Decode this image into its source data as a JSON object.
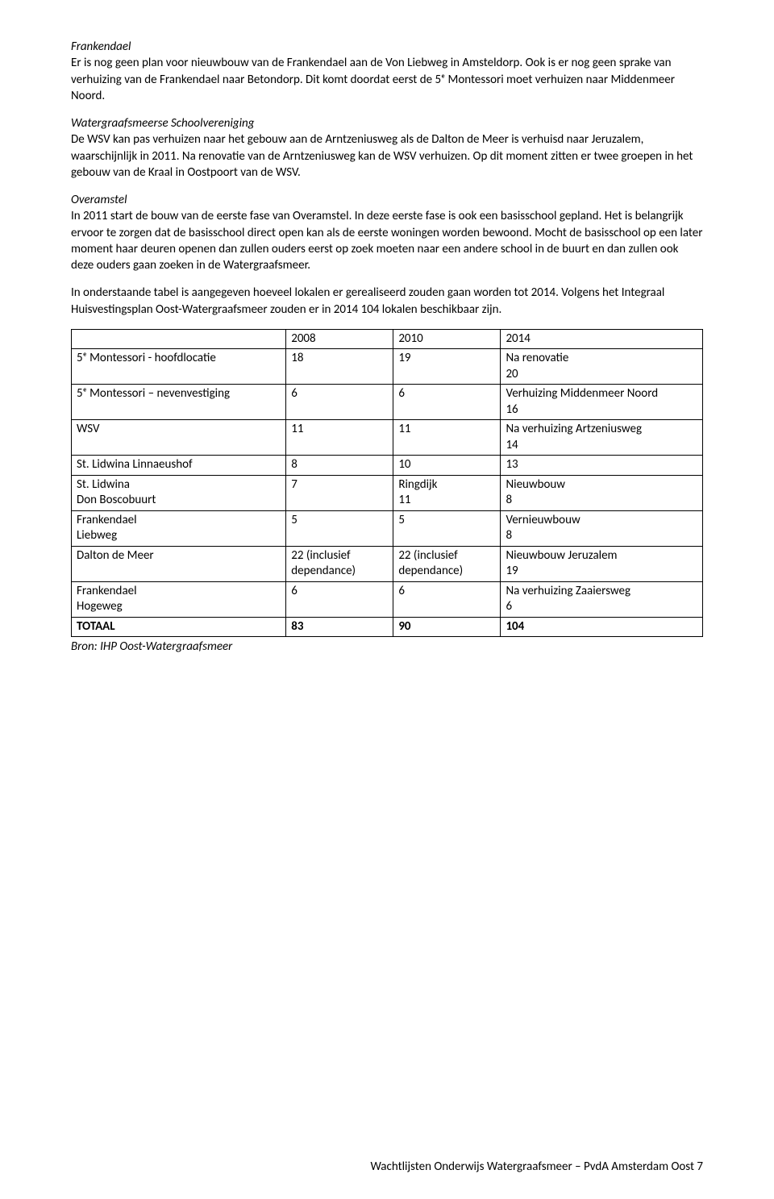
{
  "sections": {
    "frankendael": {
      "heading": "Frankendael",
      "body": "Er is nog geen plan voor nieuwbouw van de Frankendael aan de Von Liebweg in Amsteldorp. Ook is er nog geen sprake van verhuizing van de Frankendael naar Betondorp. Dit komt doordat eerst de 5ᵉ Montessori moet verhuizen naar Middenmeer Noord."
    },
    "wsv": {
      "heading": "Watergraafsmeerse Schoolvereniging",
      "body": "De WSV kan pas verhuizen naar het gebouw aan de Arntzeniusweg als de Dalton de Meer is verhuisd naar Jeruzalem, waarschijnlijk in 2011. Na renovatie van de Arntzeniusweg kan de WSV verhuizen. Op dit moment zitten er twee groepen in het gebouw van de Kraal in Oostpoort van de WSV."
    },
    "overamstel": {
      "heading": "Overamstel",
      "body": "In 2011 start de bouw van de eerste fase van Overamstel. In deze eerste fase is ook een basisschool gepland. Het is belangrijk ervoor te zorgen dat de basisschool direct open kan als de eerste woningen worden bewoond. Mocht de basisschool op een later moment haar deuren openen dan zullen ouders eerst op zoek moeten naar een andere school in de buurt en dan zullen ook deze ouders gaan zoeken in de Watergraafsmeer."
    },
    "table_intro": "In onderstaande tabel is aangegeven hoeveel lokalen er gerealiseerd zouden gaan worden tot 2014. Volgens het Integraal Huisvestingsplan Oost-Watergraafsmeer zouden er in 2014 104 lokalen beschikbaar zijn."
  },
  "table": {
    "headers": {
      "y2008": "2008",
      "y2010": "2010",
      "y2014": "2014"
    },
    "rows": [
      {
        "label": "5ᵉ Montessori - hoofdlocatie",
        "c2008": "18",
        "c2010": "19",
        "c2014": "Na renovatie\n20"
      },
      {
        "label": "5ᵉ Montessori – nevenvestiging",
        "c2008": "6",
        "c2010": "6",
        "c2014": "Verhuizing Middenmeer Noord\n16"
      },
      {
        "label": "WSV",
        "c2008": "11",
        "c2010": "11",
        "c2014": "Na verhuizing Artzeniusweg\n14"
      },
      {
        "label": "St. Lidwina Linnaeushof",
        "c2008": "8",
        "c2010": "10",
        "c2014": "13"
      },
      {
        "label": "St. Lidwina\nDon Boscobuurt",
        "c2008": "7",
        "c2010": "Ringdijk\n11",
        "c2014": "Nieuwbouw\n8"
      },
      {
        "label": "Frankendael\nLiebweg",
        "c2008": "5",
        "c2010": "5",
        "c2014": "Vernieuwbouw\n8"
      },
      {
        "label": "Dalton de Meer",
        "c2008": "22 (inclusief\ndependance)",
        "c2010": "22 (inclusief\ndependance)",
        "c2014": "Nieuwbouw Jeruzalem\n19"
      },
      {
        "label": "Frankendael\nHogeweg",
        "c2008": "6",
        "c2010": "6",
        "c2014": "Na verhuizing Zaaiersweg\n6"
      }
    ],
    "total": {
      "label": "TOTAAL",
      "c2008": "83",
      "c2010": "90",
      "c2014": "104"
    },
    "source": "Bron: IHP Oost-Watergraafsmeer"
  },
  "footer": "Wachtlijsten Onderwijs Watergraafsmeer – PvdA Amsterdam Oost 7"
}
